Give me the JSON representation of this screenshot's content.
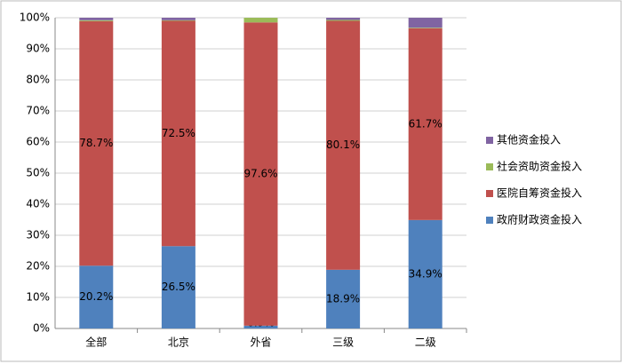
{
  "chart_data": {
    "type": "stacked_bar",
    "categories": [
      "全部",
      "北京",
      "外省",
      "三级",
      "二级"
    ],
    "series": [
      {
        "name": "政府财政资金投入",
        "color": "#4f81bd",
        "values": [
          20.2,
          26.5,
          0.9,
          18.9,
          34.9
        ],
        "value_labels": [
          "20.2%",
          "26.5%",
          "0.9%",
          "18.9%",
          "34.9%"
        ]
      },
      {
        "name": "医院自筹资金投入",
        "color": "#c0504d",
        "values": [
          78.7,
          72.5,
          97.6,
          80.1,
          61.7
        ],
        "value_labels": [
          "78.7%",
          "72.5%",
          "97.6%",
          "80.1%",
          "61.7%"
        ]
      },
      {
        "name": "社会资助资金投入",
        "color": "#9bbb59",
        "values": [
          0.3,
          0.2,
          1.5,
          0.3,
          0.2
        ]
      },
      {
        "name": "其他资金投入",
        "color": "#8064a2",
        "values": [
          0.8,
          0.8,
          0,
          0.7,
          3.2
        ]
      }
    ],
    "ylim": [
      0,
      100
    ],
    "yticks": [
      {
        "value": 0,
        "label": "0%"
      },
      {
        "value": 10,
        "label": "10%"
      },
      {
        "value": 20,
        "label": "20%"
      },
      {
        "value": 30,
        "label": "30%"
      },
      {
        "value": 40,
        "label": "40%"
      },
      {
        "value": 50,
        "label": "50%"
      },
      {
        "value": 60,
        "label": "60%"
      },
      {
        "value": 70,
        "label": "70%"
      },
      {
        "value": 80,
        "label": "80%"
      },
      {
        "value": 90,
        "label": "90%"
      },
      {
        "value": 100,
        "label": "100%"
      }
    ],
    "grid": true,
    "legend": "right"
  }
}
